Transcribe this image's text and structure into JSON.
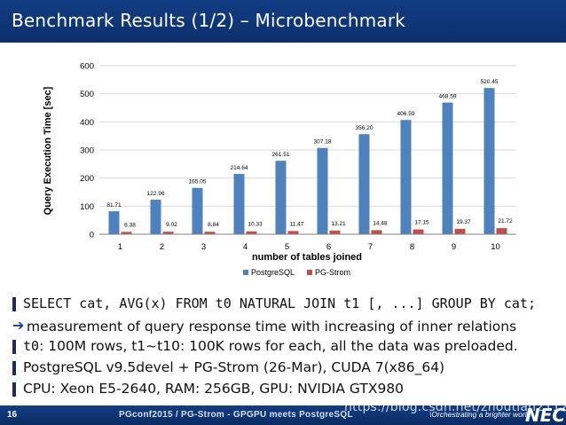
{
  "slide": {
    "title": "Benchmark Results (1/2) – Microbenchmark",
    "page_number": "16",
    "footer": "PGconf2015 / PG-Strom - GPGPU meets PostgreSQL",
    "watermark": "https://blog.csdn.net/zhoutian2112",
    "tagline": "\\Orchestrating a brighter world",
    "logo": "NEC"
  },
  "bullets": [
    {
      "text": "SELECT cat, AVG(x) FROM t0 NATURAL JOIN t1 [, ...] GROUP BY cat;"
    },
    {
      "text": "measurement of query response time with increasing of inner relations"
    },
    {
      "code": "t0",
      "text": ": 100M rows, t1~t10: 100K rows for each, all the data was preloaded."
    },
    {
      "text": "PostgreSQL v9.5devel + PG-Strom (26-Mar), CUDA 7(x86_64)"
    },
    {
      "text": "CPU: Xeon E5-2640, RAM: 256GB, GPU: NVIDIA GTX980"
    }
  ],
  "colors": {
    "header": "#123d83",
    "postgresql": "#4f81bd",
    "pgstrom": "#c0504d",
    "grid": "#d9d9d9"
  },
  "chart_data": {
    "type": "bar",
    "xlabel": "number of tables joined",
    "ylabel": "Query Execution Time [sec]",
    "ylim": [
      0,
      600
    ],
    "yticks": [
      0,
      100,
      200,
      300,
      400,
      500,
      600
    ],
    "grid": true,
    "legend": "bottom",
    "categories": [
      "1",
      "2",
      "3",
      "4",
      "5",
      "6",
      "7",
      "8",
      "9",
      "10"
    ],
    "series": [
      {
        "name": "PostgreSQL",
        "values": [
          81.71,
          122.96,
          165.05,
          214.64,
          261.51,
          307.18,
          356.2,
          406.59,
          468.59,
          520.45
        ],
        "labels": [
          "81.71",
          "122.96",
          "165.05",
          "214.64",
          "261.51",
          "307.18",
          "356.20",
          "406.59",
          "468.59",
          "520.45"
        ]
      },
      {
        "name": "PG-Strom",
        "values": [
          8.38,
          9.02,
          8.84,
          10.33,
          11.47,
          13.21,
          14.48,
          17.15,
          19.37,
          21.72
        ],
        "labels": [
          "8.38",
          "9.02",
          "8.84",
          "10.33",
          "11.47",
          "13.21",
          "14.48",
          "17.15",
          "19.37",
          "21.72"
        ]
      }
    ]
  }
}
